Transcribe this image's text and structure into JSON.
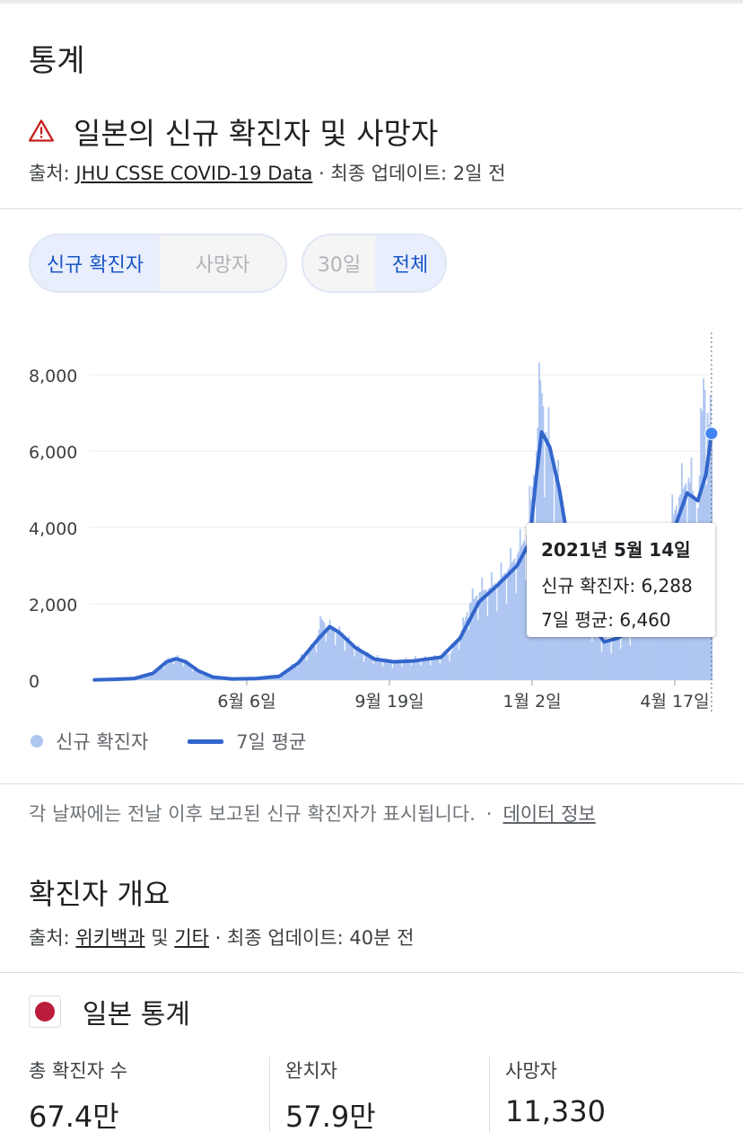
{
  "page": {
    "section_title": "통계",
    "alert": {
      "icon": "warning-triangle-icon",
      "title": "일본의 신규 확진자 및 사망자"
    },
    "source": {
      "prefix": "출처: ",
      "link_text": "JHU CSSE COVID-19 Data",
      "suffix": " · 최종 업데이트: 2일 전"
    },
    "metric_toggle": {
      "options": [
        "신규 확진자",
        "사망자"
      ],
      "selected": "신규 확진자"
    },
    "range_toggle": {
      "options": [
        "30일",
        "전체"
      ],
      "selected": "전체"
    },
    "tooltip": {
      "date": "2021년 5월 14일",
      "new_cases_line": "신규 확진자: 6,288",
      "avg_line": "7일 평균: 6,460"
    },
    "legend": {
      "bars_label": "신규 확진자",
      "line_label": "7일 평균"
    },
    "footnote": {
      "text": "각 날짜에는 전날 이후 보고된 신규 확진자가 표시됩니다.",
      "separator": "·",
      "link_text": "데이터 정보"
    },
    "overview": {
      "title": "확진자 개요",
      "source_prefix": "출처: ",
      "source_link1": "위키백과",
      "source_mid": " 및 ",
      "source_link2": "기타",
      "source_suffix": " · 최종 업데이트: 40분 전"
    },
    "stats": {
      "title": "일본 통계",
      "flag_icon": "japan-flag-icon",
      "items": [
        {
          "label": "총 확진자 수",
          "value": "67.4만"
        },
        {
          "label": "완치자",
          "value": "57.9만"
        },
        {
          "label": "사망자",
          "value": "11,330"
        }
      ]
    }
  },
  "colors": {
    "bar": "#aec6f1",
    "line": "#3366cc",
    "accent_text": "#1a56c6",
    "warning": "#c5221f"
  },
  "chart_data": {
    "type": "bar",
    "title": "",
    "xlabel": "",
    "ylabel": "",
    "ylim": [
      0,
      8000
    ],
    "y_ticks": [
      "0",
      "2,000",
      "4,000",
      "6,000",
      "8,000"
    ],
    "x_ticks": [
      {
        "label": "6월 6일",
        "date": "2020-06-06"
      },
      {
        "label": "9월 19일",
        "date": "2020-09-19"
      },
      {
        "label": "1월 2일",
        "date": "2021-01-02"
      },
      {
        "label": "4월 17일",
        "date": "2021-04-17"
      }
    ],
    "legend_position": "bottom-left",
    "grid": true,
    "series": [
      {
        "name": "신규 확진자",
        "kind": "bars",
        "points": [
          [
            "2020-03-01",
            20
          ],
          [
            "2020-03-15",
            50
          ],
          [
            "2020-03-29",
            200
          ],
          [
            "2020-04-05",
            400
          ],
          [
            "2020-04-12",
            600
          ],
          [
            "2020-04-19",
            550
          ],
          [
            "2020-04-26",
            350
          ],
          [
            "2020-05-03",
            200
          ],
          [
            "2020-05-10",
            80
          ],
          [
            "2020-05-24",
            30
          ],
          [
            "2020-06-14",
            40
          ],
          [
            "2020-06-28",
            100
          ],
          [
            "2020-07-05",
            250
          ],
          [
            "2020-07-12",
            450
          ],
          [
            "2020-07-19",
            700
          ],
          [
            "2020-07-26",
            900
          ],
          [
            "2020-07-31",
            1600
          ],
          [
            "2020-08-04",
            1400
          ],
          [
            "2020-08-11",
            1300
          ],
          [
            "2020-08-18",
            1050
          ],
          [
            "2020-08-25",
            850
          ],
          [
            "2020-09-01",
            650
          ],
          [
            "2020-09-08",
            600
          ],
          [
            "2020-09-15",
            500
          ],
          [
            "2020-09-22",
            450
          ],
          [
            "2020-10-06",
            550
          ],
          [
            "2020-10-20",
            550
          ],
          [
            "2020-11-03",
            700
          ],
          [
            "2020-11-10",
            1200
          ],
          [
            "2020-11-17",
            2000
          ],
          [
            "2020-11-24",
            2300
          ],
          [
            "2020-12-01",
            2400
          ],
          [
            "2020-12-08",
            2600
          ],
          [
            "2020-12-15",
            2900
          ],
          [
            "2020-12-22",
            3300
          ],
          [
            "2020-12-29",
            3800
          ],
          [
            "2021-01-05",
            6000
          ],
          [
            "2021-01-08",
            7850
          ],
          [
            "2021-01-12",
            6500
          ],
          [
            "2021-01-19",
            5500
          ],
          [
            "2021-01-26",
            3800
          ],
          [
            "2021-02-02",
            2500
          ],
          [
            "2021-02-09",
            1700
          ],
          [
            "2021-02-16",
            1400
          ],
          [
            "2021-02-23",
            1000
          ],
          [
            "2021-03-02",
            1000
          ],
          [
            "2021-03-09",
            1200
          ],
          [
            "2021-03-16",
            1300
          ],
          [
            "2021-03-23",
            1700
          ],
          [
            "2021-03-30",
            2400
          ],
          [
            "2021-04-06",
            3000
          ],
          [
            "2021-04-13",
            4000
          ],
          [
            "2021-04-20",
            4800
          ],
          [
            "2021-04-27",
            5300
          ],
          [
            "2021-05-04",
            4500
          ],
          [
            "2021-05-08",
            7900
          ],
          [
            "2021-05-12",
            6700
          ],
          [
            "2021-05-14",
            6288
          ]
        ]
      },
      {
        "name": "7일 평균",
        "kind": "line",
        "points": [
          [
            "2020-02-15",
            5
          ],
          [
            "2020-03-01",
            20
          ],
          [
            "2020-03-15",
            40
          ],
          [
            "2020-03-29",
            180
          ],
          [
            "2020-04-08",
            480
          ],
          [
            "2020-04-15",
            560
          ],
          [
            "2020-04-22",
            480
          ],
          [
            "2020-05-01",
            250
          ],
          [
            "2020-05-12",
            80
          ],
          [
            "2020-05-26",
            30
          ],
          [
            "2020-06-13",
            40
          ],
          [
            "2020-06-30",
            100
          ],
          [
            "2020-07-14",
            450
          ],
          [
            "2020-07-28",
            1050
          ],
          [
            "2020-08-06",
            1400
          ],
          [
            "2020-08-13",
            1250
          ],
          [
            "2020-08-25",
            850
          ],
          [
            "2020-09-08",
            550
          ],
          [
            "2020-09-22",
            480
          ],
          [
            "2020-10-06",
            500
          ],
          [
            "2020-10-27",
            600
          ],
          [
            "2020-11-10",
            1100
          ],
          [
            "2020-11-24",
            2050
          ],
          [
            "2020-12-08",
            2500
          ],
          [
            "2020-12-22",
            3000
          ],
          [
            "2020-12-31",
            3600
          ],
          [
            "2021-01-05",
            5300
          ],
          [
            "2021-01-09",
            6500
          ],
          [
            "2021-01-15",
            6100
          ],
          [
            "2021-01-22",
            5000
          ],
          [
            "2021-01-29",
            3500
          ],
          [
            "2021-02-06",
            2300
          ],
          [
            "2021-02-16",
            1400
          ],
          [
            "2021-02-24",
            1000
          ],
          [
            "2021-03-06",
            1100
          ],
          [
            "2021-03-16",
            1300
          ],
          [
            "2021-03-26",
            2000
          ],
          [
            "2021-04-06",
            2800
          ],
          [
            "2021-04-16",
            3900
          ],
          [
            "2021-04-26",
            4900
          ],
          [
            "2021-05-04",
            4700
          ],
          [
            "2021-05-10",
            5400
          ],
          [
            "2021-05-14",
            6460
          ]
        ]
      }
    ],
    "highlight": {
      "date": "2021-05-14",
      "new_cases": 6288,
      "avg": 6460
    }
  }
}
